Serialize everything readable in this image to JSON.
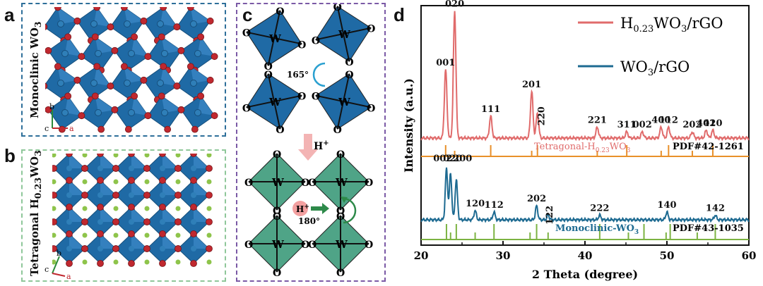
{
  "panels": {
    "a": {
      "letter": "a",
      "label_main": "Monoclinic WO",
      "label_sub": "3",
      "axis_b": "b",
      "axis_c": "c",
      "axis_a": "a"
    },
    "b": {
      "letter": "b",
      "label_prefix": "Tetragonal H",
      "label_sub1": "0.23",
      "label_mid": "WO",
      "label_sub2": "3",
      "axis_b": "b",
      "axis_c": "c",
      "axis_a": "a"
    },
    "c": {
      "letter": "c",
      "W": "W",
      "O": "O",
      "angle_top": "165°",
      "angle_bottom": "180°",
      "proton": "H",
      "proton_sup": "+",
      "transition": "H",
      "transition_sup": "+"
    },
    "d": {
      "letter": "d"
    }
  },
  "colors": {
    "box_a": "#2e6f9a",
    "box_b": "#8fc79a",
    "box_c": "#7b5aa6",
    "octa_blue": "#1f6aa5",
    "octa_teal": "#4fa487",
    "oxygen": "#c0282f",
    "hydrogen": "#8ec44b",
    "series_h": "#e06b6b",
    "series_w": "#1d6a91",
    "ref_h": "#e8902a",
    "ref_w": "#7cb342"
  },
  "chart_data": {
    "type": "line",
    "xlabel": "2 Theta (degree)",
    "ylabel": "Intensity (a.u.)",
    "xlim": [
      20,
      60
    ],
    "xticks": [
      "20",
      "30",
      "40",
      "50",
      "60"
    ],
    "legend_position": "top-right",
    "series": [
      {
        "name_main": "H",
        "name_sub": "0.23",
        "name_rest": "WO",
        "name_sub2": "3",
        "name_tail": "/rGO",
        "peaks": [
          {
            "label": "001",
            "x": 23.0,
            "h": 0.44
          },
          {
            "label": "020",
            "x": 24.1,
            "h": 0.82
          },
          {
            "label": "111",
            "x": 28.5,
            "h": 0.14
          },
          {
            "label": "201",
            "x": 33.5,
            "h": 0.3
          },
          {
            "label": "220",
            "x": 34.2,
            "h": 0.16
          },
          {
            "label": "221",
            "x": 41.5,
            "h": 0.07
          },
          {
            "label": "311",
            "x": 45.1,
            "h": 0.04
          },
          {
            "label": "002",
            "x": 47.0,
            "h": 0.04
          },
          {
            "label": "400",
            "x": 49.3,
            "h": 0.07
          },
          {
            "label": "112",
            "x": 50.2,
            "h": 0.07
          },
          {
            "label": "202",
            "x": 53.1,
            "h": 0.04
          },
          {
            "label": "401",
            "x": 54.8,
            "h": 0.05
          },
          {
            "label": "420",
            "x": 55.6,
            "h": 0.05
          }
        ],
        "reference": {
          "name_main": "Tetragonal-H",
          "name_sub": "0.23",
          "name_rest": "WO",
          "name_sub2": "3",
          "pdf": "PDF#42-1261",
          "lines": [
            23.0,
            24.1,
            28.5,
            33.5,
            34.2,
            41.5,
            45.1,
            49.3,
            50.2,
            53.1,
            55.6
          ]
        }
      },
      {
        "name_main": "WO",
        "name_sub": "3",
        "name_tail": "/rGO",
        "peaks": [
          {
            "label": "002",
            "x": 23.1,
            "h": 0.33
          },
          {
            "label": "020",
            "x": 23.6,
            "h": 0.3
          },
          {
            "label": "200",
            "x": 24.3,
            "h": 0.26
          },
          {
            "label": "120",
            "x": 26.6,
            "h": 0.06
          },
          {
            "label": "112",
            "x": 28.9,
            "h": 0.05
          },
          {
            "label": "202",
            "x": 34.1,
            "h": 0.09
          },
          {
            "label": "122",
            "x": 35.5,
            "h": 0.03
          },
          {
            "label": "222",
            "x": 41.8,
            "h": 0.03
          },
          {
            "label": "140",
            "x": 50.0,
            "h": 0.05
          },
          {
            "label": "142",
            "x": 55.9,
            "h": 0.03
          }
        ],
        "reference": {
          "name_main": "Monoclinic-WO",
          "name_sub": "3",
          "pdf": "PDF#43-1035",
          "lines": [
            23.1,
            23.6,
            24.3,
            26.6,
            28.9,
            33.3,
            34.1,
            35.5,
            41.8,
            45.3,
            47.2,
            49.9,
            50.4,
            53.7,
            55.9
          ]
        }
      }
    ]
  }
}
